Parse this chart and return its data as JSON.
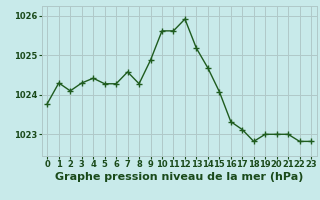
{
  "x": [
    0,
    1,
    2,
    3,
    4,
    5,
    6,
    7,
    8,
    9,
    10,
    11,
    12,
    13,
    14,
    15,
    16,
    17,
    18,
    19,
    20,
    21,
    22,
    23
  ],
  "y": [
    1023.78,
    1024.3,
    1024.1,
    1024.3,
    1024.42,
    1024.28,
    1024.28,
    1024.58,
    1024.28,
    1024.88,
    1025.62,
    1025.62,
    1025.92,
    1025.18,
    1024.68,
    1024.08,
    1023.32,
    1023.12,
    1022.82,
    1023.0,
    1023.0,
    1023.0,
    1022.82,
    1022.82
  ],
  "line_color": "#1f5c1f",
  "marker_color": "#1f5c1f",
  "bg_color": "#c8eaea",
  "grid_color": "#b0c8c8",
  "xlabel": "Graphe pression niveau de la mer (hPa)",
  "xlabel_color": "#1a4a1a",
  "yticks": [
    1023,
    1024,
    1025,
    1026
  ],
  "ylim": [
    1022.45,
    1026.25
  ],
  "xlim": [
    -0.5,
    23.5
  ],
  "xticks": [
    0,
    1,
    2,
    3,
    4,
    5,
    6,
    7,
    8,
    9,
    10,
    11,
    12,
    13,
    14,
    15,
    16,
    17,
    18,
    19,
    20,
    21,
    22,
    23
  ],
  "tick_label_color": "#1a4a1a",
  "tick_label_fontsize": 6.0,
  "xlabel_fontsize": 8.0,
  "line_width": 1.0,
  "marker_size": 2.5
}
